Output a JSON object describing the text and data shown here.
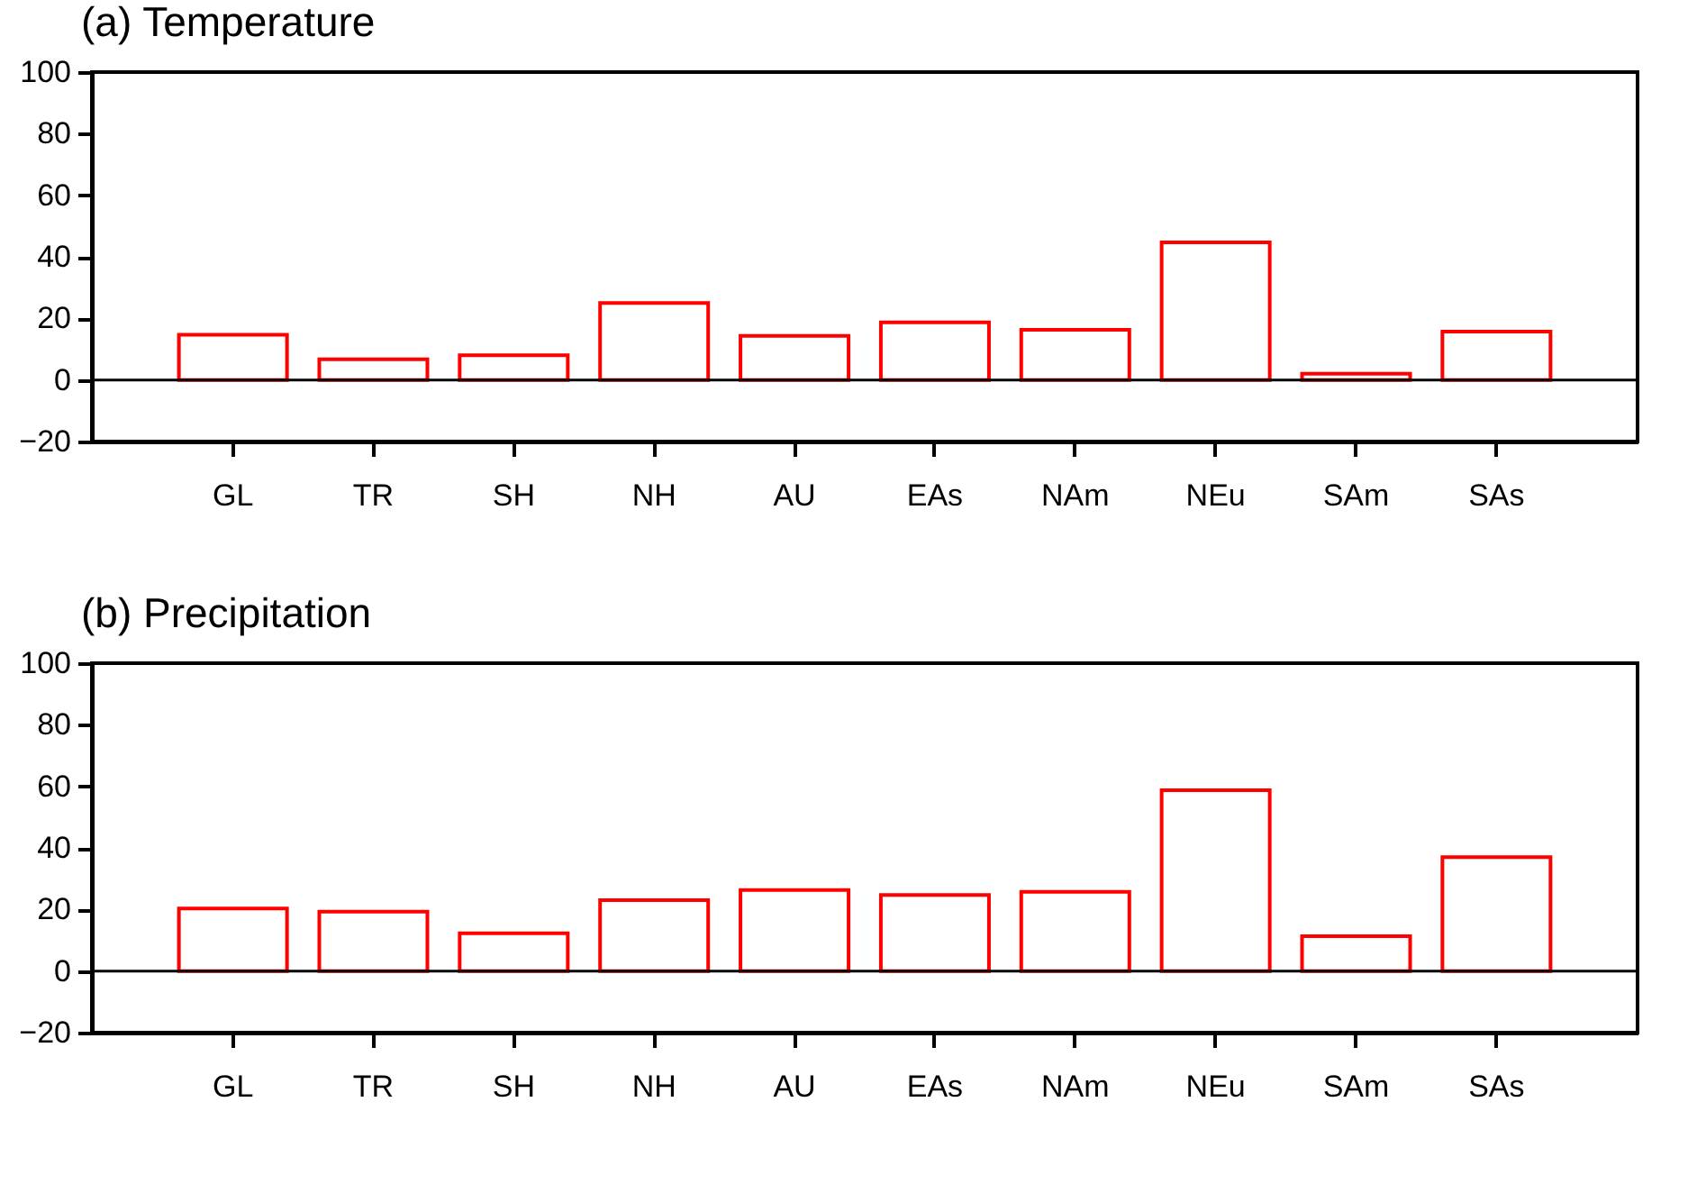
{
  "chart_data": [
    {
      "type": "bar",
      "title": "(a) Temperature",
      "categories": [
        "GL",
        "TR",
        "SH",
        "NH",
        "AU",
        "EAs",
        "NAm",
        "NEu",
        "SAm",
        "SAs"
      ],
      "series": [
        {
          "color": "#ff0000",
          "values": [
            14.7,
            6.7,
            8,
            25,
            14.3,
            18.7,
            16.3,
            44.7,
            2,
            15.7
          ]
        }
      ],
      "ylim": [
        -20,
        100
      ],
      "yticks": [
        -20,
        0,
        20,
        40,
        60,
        80,
        100
      ],
      "grid": false,
      "legend": false,
      "ref_lines": [
        {
          "axis": "y",
          "value": 0,
          "color": "#000000"
        }
      ]
    },
    {
      "type": "bar",
      "title": "(b) Precipitation",
      "categories": [
        "GL",
        "TR",
        "SH",
        "NH",
        "AU",
        "EAs",
        "NAm",
        "NEu",
        "SAm",
        "SAs"
      ],
      "series": [
        {
          "color": "#ff0000",
          "values": [
            20.3,
            19.3,
            12.3,
            23,
            26.3,
            24.7,
            25.7,
            58.7,
            11.3,
            37
          ]
        }
      ],
      "ylim": [
        -20,
        100
      ],
      "yticks": [
        -20,
        0,
        20,
        40,
        60,
        80,
        100
      ],
      "grid": false,
      "legend": false,
      "ref_lines": [
        {
          "axis": "y",
          "value": 0,
          "color": "#000000"
        }
      ]
    }
  ]
}
